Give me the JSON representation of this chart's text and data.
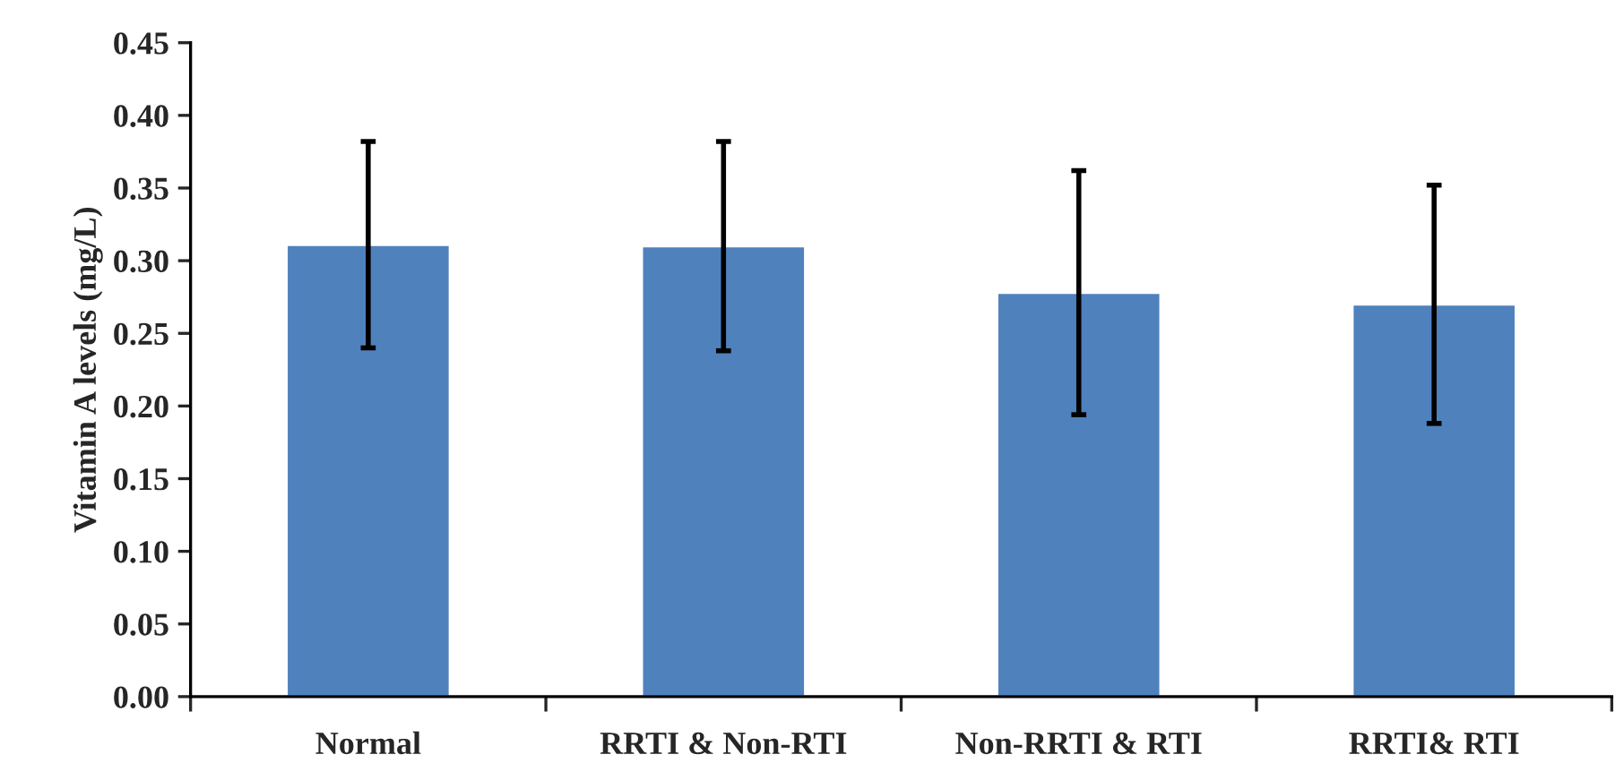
{
  "chart_data": {
    "type": "bar",
    "ylabel": "Vitamin A levels (mg/L)",
    "categories": [
      "Normal",
      "RRTI & Non-RTI",
      "Non-RRTI & RTI",
      "RRTI& RTI"
    ],
    "values": [
      0.311,
      0.31,
      0.278,
      0.27
    ],
    "errors": [
      0.071,
      0.072,
      0.084,
      0.082
    ],
    "color": "#4f81bd",
    "ylim": [
      0,
      0.45
    ],
    "yticks": [
      {
        "value": 0,
        "label": "0.00"
      },
      {
        "value": 0.05,
        "label": "0.05"
      },
      {
        "value": 0.1,
        "label": "0.10"
      },
      {
        "value": 0.15,
        "label": "0.15"
      },
      {
        "value": 0.2,
        "label": "0.20"
      },
      {
        "value": 0.25,
        "label": "0.25"
      },
      {
        "value": 0.3,
        "label": "0.30"
      },
      {
        "value": 0.35,
        "label": "0.35"
      },
      {
        "value": 0.4,
        "label": "0.40"
      },
      {
        "value": 0.45,
        "label": "0.45"
      }
    ],
    "grid": false,
    "legend": false
  }
}
